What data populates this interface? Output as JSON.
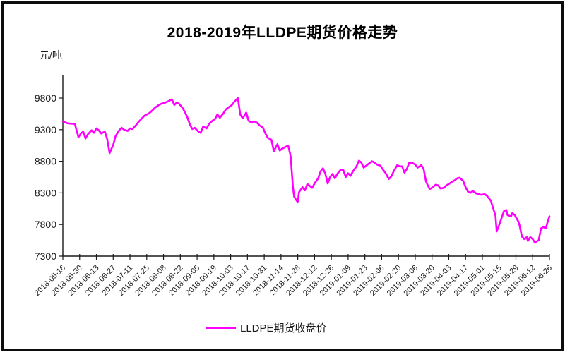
{
  "window": {
    "background": "#FFFFFF",
    "frame_border_color": "#0D0D0D"
  },
  "chart_data": {
    "type": "line",
    "title": "2018-2019年LLDPE期货价格走势",
    "unit_label": "元/吨",
    "xlabel": "",
    "ylabel": "元/吨",
    "grid": false,
    "axis_color": "#1A1A1A",
    "line_color": "#FF00FF",
    "ylim": [
      7300,
      9800
    ],
    "y_ticks": [
      9800,
      9300,
      8800,
      8300,
      7800,
      7300
    ],
    "x_tick_labels": [
      "2018-05-16",
      "2018-05-30",
      "2018-06-13",
      "2018-06-27",
      "2018-07-11",
      "2018-07-25",
      "2018-08-08",
      "2018-08-22",
      "2018-09-05",
      "2018-09-19",
      "2018-10-03",
      "2018-10-17",
      "2018-10-31",
      "2018-11-14",
      "2018-11-28",
      "2018-12-12",
      "2018-12-26",
      "2019-01-09",
      "2019-01-23",
      "2019-02-06",
      "2019-02-20",
      "2019-03-06",
      "2019-03-20",
      "2019-04-03",
      "2019-04-17",
      "2019-05-01",
      "2019-05-15",
      "2019-05-29",
      "2019-06-12",
      "2019-06-26"
    ],
    "x_axis_span_days": 406,
    "legend": {
      "label": "LLDPE期货收盘价",
      "position": "bottom-center"
    },
    "series": [
      {
        "name": "LLDPE期货收盘价",
        "color": "#FF00FF",
        "points_format": [
          "days_since_2018-05-16",
          "price_yuan_per_ton"
        ],
        "points": [
          [
            0,
            9430
          ],
          [
            4,
            9400
          ],
          [
            10,
            9390
          ],
          [
            13,
            9180
          ],
          [
            15,
            9240
          ],
          [
            17,
            9270
          ],
          [
            19,
            9160
          ],
          [
            21,
            9230
          ],
          [
            24,
            9290
          ],
          [
            26,
            9250
          ],
          [
            28,
            9320
          ],
          [
            30,
            9290
          ],
          [
            32,
            9240
          ],
          [
            35,
            9270
          ],
          [
            37,
            9150
          ],
          [
            39,
            8930
          ],
          [
            42,
            9060
          ],
          [
            44,
            9200
          ],
          [
            47,
            9290
          ],
          [
            49,
            9330
          ],
          [
            51,
            9300
          ],
          [
            54,
            9280
          ],
          [
            56,
            9320
          ],
          [
            58,
            9310
          ],
          [
            61,
            9370
          ],
          [
            63,
            9420
          ],
          [
            65,
            9460
          ],
          [
            68,
            9520
          ],
          [
            70,
            9540
          ],
          [
            72,
            9560
          ],
          [
            75,
            9610
          ],
          [
            77,
            9650
          ],
          [
            80,
            9690
          ],
          [
            82,
            9710
          ],
          [
            84,
            9720
          ],
          [
            87,
            9740
          ],
          [
            89,
            9760
          ],
          [
            91,
            9780
          ],
          [
            93,
            9690
          ],
          [
            95,
            9730
          ],
          [
            97,
            9710
          ],
          [
            100,
            9640
          ],
          [
            102,
            9570
          ],
          [
            104,
            9490
          ],
          [
            106,
            9380
          ],
          [
            108,
            9310
          ],
          [
            110,
            9330
          ],
          [
            113,
            9270
          ],
          [
            115,
            9250
          ],
          [
            117,
            9350
          ],
          [
            120,
            9320
          ],
          [
            122,
            9390
          ],
          [
            124,
            9430
          ],
          [
            127,
            9470
          ],
          [
            129,
            9540
          ],
          [
            131,
            9490
          ],
          [
            134,
            9560
          ],
          [
            136,
            9620
          ],
          [
            138,
            9650
          ],
          [
            141,
            9690
          ],
          [
            143,
            9740
          ],
          [
            146,
            9800
          ],
          [
            148,
            9540
          ],
          [
            150,
            9480
          ],
          [
            153,
            9570
          ],
          [
            155,
            9440
          ],
          [
            157,
            9420
          ],
          [
            160,
            9430
          ],
          [
            162,
            9410
          ],
          [
            164,
            9370
          ],
          [
            167,
            9330
          ],
          [
            169,
            9240
          ],
          [
            171,
            9170
          ],
          [
            174,
            9140
          ],
          [
            176,
            8960
          ],
          [
            179,
            9070
          ],
          [
            181,
            8970
          ],
          [
            183,
            9000
          ],
          [
            186,
            9030
          ],
          [
            188,
            9050
          ],
          [
            190,
            8890
          ],
          [
            192,
            8390
          ],
          [
            193,
            8240
          ],
          [
            196,
            8150
          ],
          [
            197,
            8310
          ],
          [
            200,
            8390
          ],
          [
            202,
            8340
          ],
          [
            204,
            8440
          ],
          [
            208,
            8380
          ],
          [
            210,
            8450
          ],
          [
            213,
            8530
          ],
          [
            215,
            8640
          ],
          [
            217,
            8690
          ],
          [
            219,
            8600
          ],
          [
            221,
            8450
          ],
          [
            223,
            8550
          ],
          [
            225,
            8600
          ],
          [
            227,
            8530
          ],
          [
            229,
            8600
          ],
          [
            232,
            8670
          ],
          [
            234,
            8660
          ],
          [
            236,
            8550
          ],
          [
            238,
            8610
          ],
          [
            240,
            8570
          ],
          [
            242,
            8640
          ],
          [
            245,
            8720
          ],
          [
            247,
            8810
          ],
          [
            249,
            8780
          ],
          [
            251,
            8700
          ],
          [
            253,
            8730
          ],
          [
            255,
            8760
          ],
          [
            258,
            8800
          ],
          [
            260,
            8780
          ],
          [
            262,
            8750
          ],
          [
            265,
            8730
          ],
          [
            267,
            8670
          ],
          [
            269,
            8620
          ],
          [
            272,
            8520
          ],
          [
            274,
            8560
          ],
          [
            276,
            8640
          ],
          [
            279,
            8740
          ],
          [
            281,
            8720
          ],
          [
            283,
            8720
          ],
          [
            285,
            8620
          ],
          [
            287,
            8680
          ],
          [
            289,
            8780
          ],
          [
            292,
            8770
          ],
          [
            294,
            8750
          ],
          [
            296,
            8700
          ],
          [
            299,
            8740
          ],
          [
            301,
            8680
          ],
          [
            303,
            8480
          ],
          [
            306,
            8360
          ],
          [
            308,
            8380
          ],
          [
            311,
            8430
          ],
          [
            313,
            8420
          ],
          [
            315,
            8370
          ],
          [
            318,
            8380
          ],
          [
            320,
            8420
          ],
          [
            322,
            8440
          ],
          [
            325,
            8480
          ],
          [
            327,
            8500
          ],
          [
            329,
            8530
          ],
          [
            331,
            8540
          ],
          [
            334,
            8490
          ],
          [
            336,
            8390
          ],
          [
            338,
            8320
          ],
          [
            340,
            8300
          ],
          [
            342,
            8330
          ],
          [
            345,
            8290
          ],
          [
            347,
            8280
          ],
          [
            349,
            8270
          ],
          [
            352,
            8280
          ],
          [
            354,
            8250
          ],
          [
            357,
            8180
          ],
          [
            359,
            8060
          ],
          [
            361,
            7940
          ],
          [
            362,
            7690
          ],
          [
            364,
            7790
          ],
          [
            366,
            7900
          ],
          [
            368,
            8010
          ],
          [
            370,
            8030
          ],
          [
            371,
            7950
          ],
          [
            374,
            7930
          ],
          [
            375,
            7980
          ],
          [
            377,
            7950
          ],
          [
            380,
            7850
          ],
          [
            381,
            7790
          ],
          [
            383,
            7610
          ],
          [
            385,
            7570
          ],
          [
            387,
            7600
          ],
          [
            388,
            7540
          ],
          [
            390,
            7600
          ],
          [
            392,
            7570
          ],
          [
            394,
            7510
          ],
          [
            395,
            7530
          ],
          [
            397,
            7550
          ],
          [
            399,
            7740
          ],
          [
            401,
            7760
          ],
          [
            403,
            7740
          ],
          [
            404,
            7810
          ],
          [
            406,
            7930
          ]
        ]
      }
    ]
  }
}
